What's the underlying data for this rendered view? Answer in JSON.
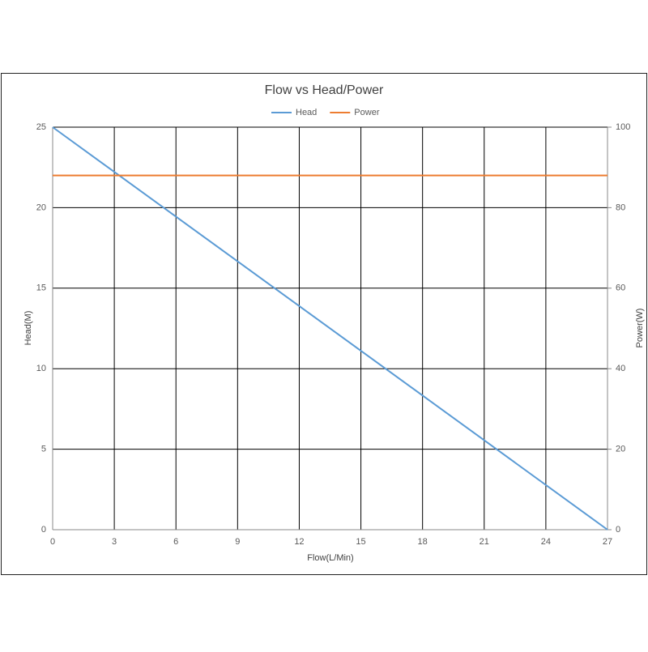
{
  "chart_data": {
    "type": "line",
    "title": "Flow vs Head/Power",
    "x_label": "Flow(L/Min)",
    "y_label": "Head(M)",
    "y2_label": "Power(W)",
    "x": [
      0,
      27
    ],
    "series": [
      {
        "name": "Head",
        "color": "#5b9bd5",
        "values": [
          25,
          0
        ]
      },
      {
        "name": "Power",
        "color": "#ed7d31",
        "values": [
          88,
          88
        ],
        "axis": "y2"
      }
    ],
    "xlim": [
      0,
      27
    ],
    "xticks": [
      0,
      3,
      6,
      9,
      12,
      15,
      18,
      21,
      24,
      27
    ],
    "ylim": [
      0,
      25
    ],
    "yticks": [
      0,
      5,
      10,
      15,
      20,
      25
    ],
    "y2lim": [
      0,
      100
    ],
    "y2ticks": [
      0,
      20,
      40,
      60,
      80,
      100
    ],
    "grid": true,
    "legend": "top"
  }
}
